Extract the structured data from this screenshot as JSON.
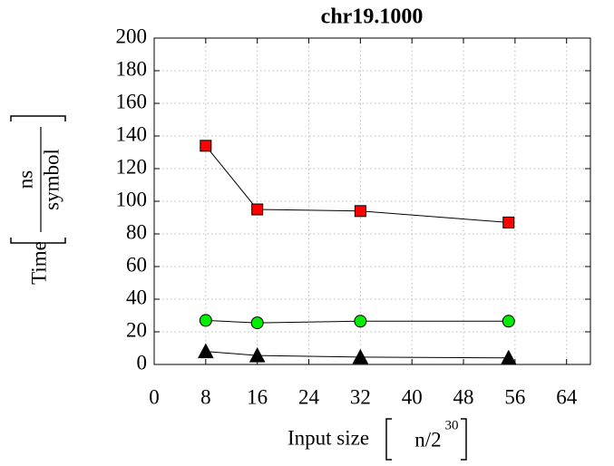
{
  "chart_data": {
    "type": "line",
    "title": "chr19.1000",
    "x_label": {
      "text": "Input size",
      "unit_base": "n/2",
      "unit_exp": "30"
    },
    "y_label": {
      "text": "Time",
      "unit_num": "ns",
      "unit_den": "symbol"
    },
    "series": [
      {
        "color": "#ff0000",
        "marker": "square",
        "x": [
          8,
          16,
          32,
          55
        ],
        "values": [
          134,
          95,
          94,
          87
        ]
      },
      {
        "color": "#00ee00",
        "marker": "circle",
        "x": [
          8,
          16,
          32,
          55
        ],
        "values": [
          27,
          25.5,
          26.5,
          26.5
        ]
      },
      {
        "color": "#000000",
        "marker": "triangle",
        "x": [
          8,
          16,
          32,
          55
        ],
        "values": [
          8,
          5.5,
          4.5,
          4
        ]
      }
    ],
    "xlim": [
      0,
      67.7
    ],
    "xticks": [
      0,
      8,
      16,
      24,
      32,
      40,
      48,
      56,
      64
    ],
    "ylim": [
      0,
      200
    ],
    "yticks": [
      0,
      20,
      40,
      60,
      80,
      100,
      120,
      140,
      160,
      180,
      200
    ],
    "grid": true
  }
}
